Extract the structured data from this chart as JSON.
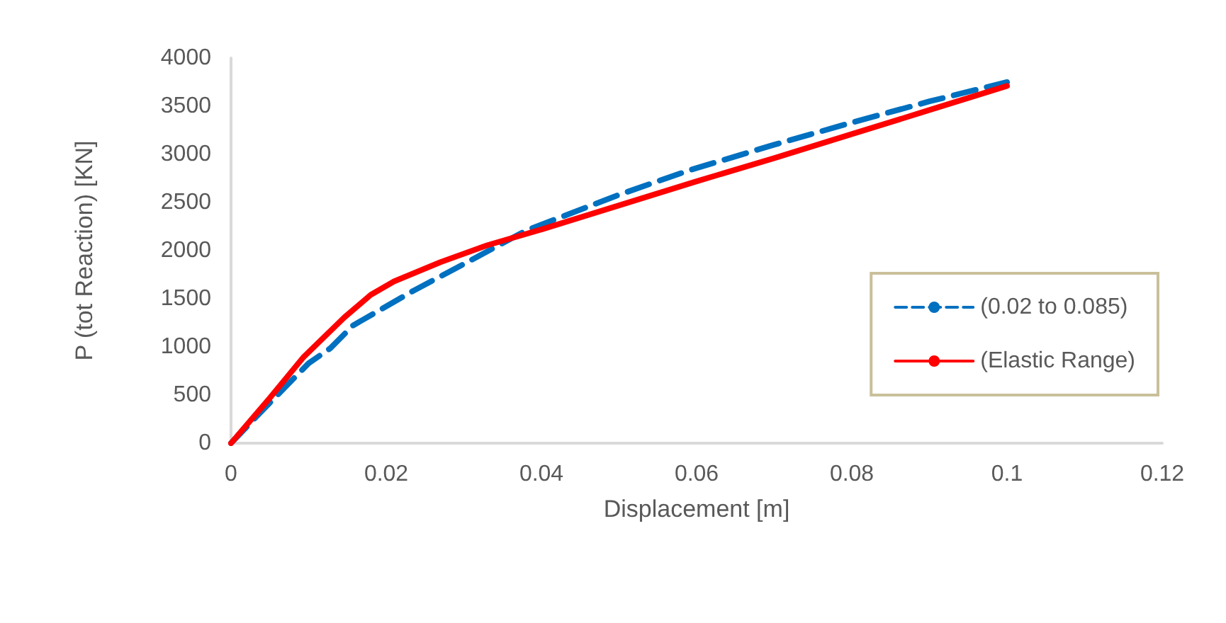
{
  "chart_data": {
    "type": "line",
    "xlabel": "Displacement [m]",
    "ylabel": "P (tot Reaction) [KN]",
    "xlim": [
      0,
      0.12
    ],
    "xticks": [
      0,
      0.02,
      0.04,
      0.06,
      0.08,
      0.1,
      0.12
    ],
    "ylim": [
      0,
      4000
    ],
    "yticks": [
      0,
      500,
      1000,
      1500,
      2000,
      2500,
      3000,
      3500,
      4000
    ],
    "grid": false,
    "legend": "right",
    "marker": "none",
    "series": [
      {
        "name": "(0.02 to 0.085)",
        "color": "#0070c0",
        "line_style": "dashed",
        "x": [
          0,
          0.005,
          0.01,
          0.0128,
          0.0157,
          0.0235,
          0.03,
          0.038,
          0.05,
          0.059,
          0.07,
          0.08,
          0.09,
          0.1
        ],
        "values": [
          0,
          420,
          830,
          986,
          1222,
          1583,
          1861,
          2208,
          2580,
          2833,
          3100,
          3330,
          3550,
          3750
        ]
      },
      {
        "name": "(Elastic Range)",
        "color": "#ff0000",
        "line_style": "solid",
        "x": [
          0,
          0.005,
          0.0093,
          0.0146,
          0.018,
          0.021,
          0.027,
          0.033,
          0.04,
          0.05,
          0.06,
          0.07,
          0.08,
          0.09,
          0.1
        ],
        "values": [
          0,
          470,
          890,
          1306,
          1540,
          1680,
          1880,
          2055,
          2220,
          2470,
          2720,
          2960,
          3210,
          3460,
          3710
        ]
      }
    ]
  }
}
